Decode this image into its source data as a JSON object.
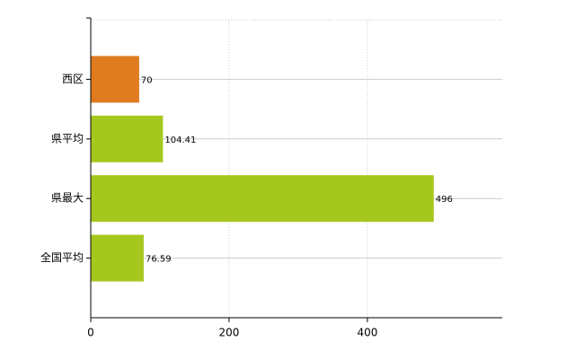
{
  "chart_data": {
    "type": "hbar",
    "categories": [
      "西区",
      "県平均",
      "県最大",
      "全国平均"
    ],
    "values": [
      70,
      104.41,
      496,
      76.59
    ],
    "colors": [
      "#e07b20",
      "#a6c81e",
      "#a6c81e",
      "#a6c81e"
    ],
    "xlim": [
      0,
      595
    ],
    "xticks": [
      0,
      200,
      400
    ],
    "grid": true
  }
}
